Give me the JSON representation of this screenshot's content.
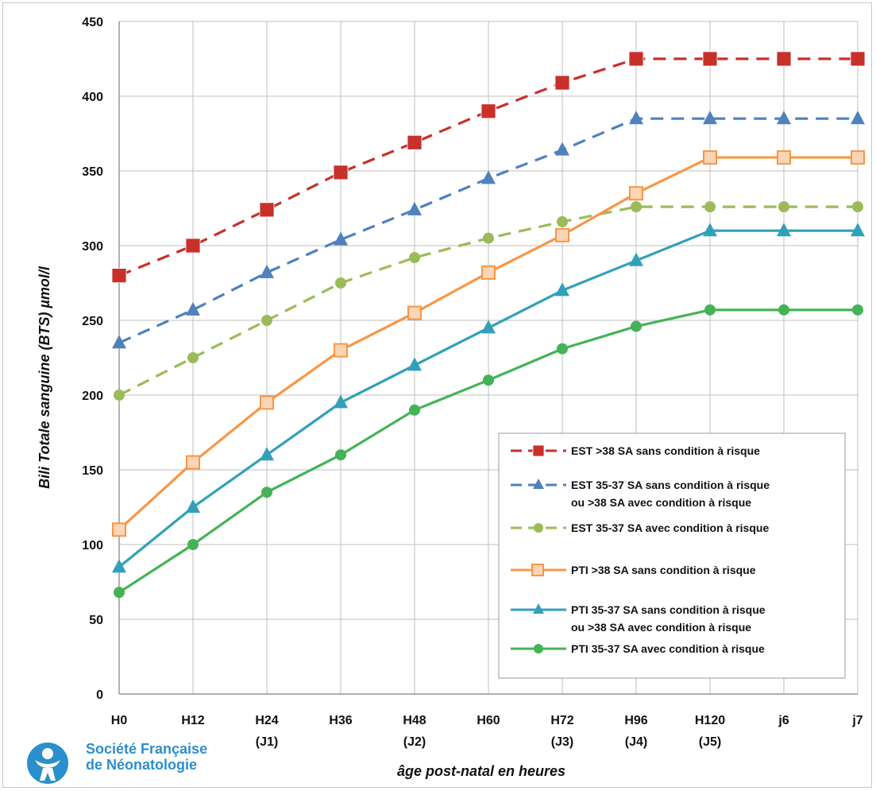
{
  "chart_data": {
    "type": "line",
    "title": "",
    "ylabel": "Bili Totale sanguine (BTS) µmol/l",
    "xlabel": "âge post-natal en heures",
    "ylim": [
      0,
      450
    ],
    "yticks": [
      0,
      50,
      100,
      150,
      200,
      250,
      300,
      350,
      400,
      450
    ],
    "categories": [
      "H0",
      "H12",
      "H24",
      "H36",
      "H48",
      "H60",
      "H72",
      "H96",
      "H120",
      "j6",
      "j7"
    ],
    "category_sublabels": [
      "",
      "",
      "(J1)",
      "",
      "(J2)",
      "",
      "(J3)",
      "(J4)",
      "(J5)",
      "",
      ""
    ],
    "grid": true,
    "legend_position": "bottom-right",
    "series": [
      {
        "name": "EST >38 SA sans condition à risque",
        "name_line2": "",
        "color": "#c8302a",
        "dashed": true,
        "marker": "square",
        "values": [
          280,
          300,
          324,
          349,
          369,
          390,
          409,
          425,
          425,
          425,
          425
        ]
      },
      {
        "name": "EST  35-37 SA sans condition à risque",
        "name_line2": "ou >38 SA avec condition à risque",
        "color": "#4f81bd",
        "dashed": true,
        "marker": "triangle",
        "values": [
          235,
          257,
          282,
          304,
          324,
          345,
          364,
          385,
          385,
          385,
          385
        ]
      },
      {
        "name": "EST 35-37 SA avec condition à risque",
        "name_line2": "",
        "color": "#9bbb59",
        "dashed": true,
        "marker": "circle",
        "values": [
          200,
          225,
          250,
          275,
          292,
          305,
          316,
          326,
          326,
          326,
          326
        ]
      },
      {
        "name": "PTI >38 SA sans condition à risque",
        "name_line2": "",
        "color": "#f79646",
        "dashed": false,
        "marker": "square",
        "values": [
          110,
          155,
          195,
          230,
          255,
          282,
          307,
          335,
          359,
          359,
          359
        ]
      },
      {
        "name": "PTI 35-37 SA sans condition à risque",
        "name_line2": "ou >38 SA avec condition à risque",
        "color": "#31a0b8",
        "dashed": false,
        "marker": "triangle",
        "values": [
          85,
          125,
          160,
          195,
          220,
          245,
          270,
          290,
          310,
          310,
          310
        ]
      },
      {
        "name": "PTI 35-37 SA avec condition à risque",
        "name_line2": "",
        "color": "#44b356",
        "dashed": false,
        "marker": "circle",
        "values": [
          68,
          100,
          135,
          160,
          190,
          210,
          231,
          246,
          257,
          257,
          257
        ]
      }
    ]
  },
  "logo": {
    "line1": "Société Française",
    "line2": "de Néonatologie",
    "icon": "baby-figure-icon",
    "color": "#2b8fcb"
  }
}
